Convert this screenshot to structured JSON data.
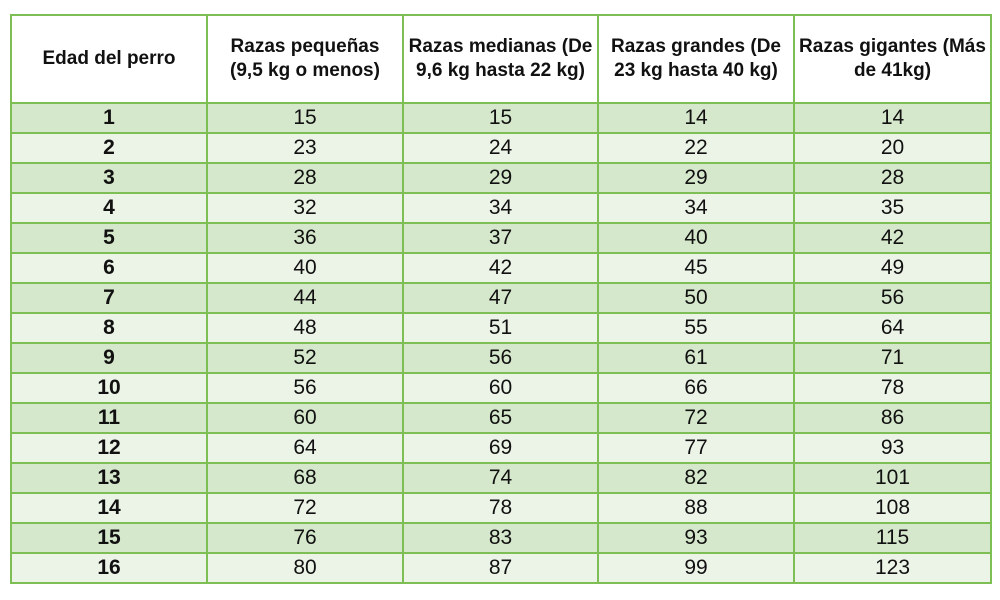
{
  "table": {
    "headers": [
      "Edad del perro",
      "Razas pequeñas (9,5 kg o menos)",
      "Razas medianas (De 9,6 kg hasta 22 kg)",
      "Razas grandes (De 23 kg hasta 40 kg)",
      "Razas gigantes (Más de 41kg)"
    ],
    "rows": [
      [
        "1",
        "15",
        "15",
        "14",
        "14"
      ],
      [
        "2",
        "23",
        "24",
        "22",
        "20"
      ],
      [
        "3",
        "28",
        "29",
        "29",
        "28"
      ],
      [
        "4",
        "32",
        "34",
        "34",
        "35"
      ],
      [
        "5",
        "36",
        "37",
        "40",
        "42"
      ],
      [
        "6",
        "40",
        "42",
        "45",
        "49"
      ],
      [
        "7",
        "44",
        "47",
        "50",
        "56"
      ],
      [
        "8",
        "48",
        "51",
        "55",
        "64"
      ],
      [
        "9",
        "52",
        "56",
        "61",
        "71"
      ],
      [
        "10",
        "56",
        "60",
        "66",
        "78"
      ],
      [
        "11",
        "60",
        "65",
        "72",
        "86"
      ],
      [
        "12",
        "64",
        "69",
        "77",
        "93"
      ],
      [
        "13",
        "68",
        "74",
        "82",
        "101"
      ],
      [
        "14",
        "72",
        "78",
        "88",
        "108"
      ],
      [
        "15",
        "76",
        "83",
        "93",
        "115"
      ],
      [
        "16",
        "80",
        "87",
        "99",
        "123"
      ]
    ]
  },
  "colors": {
    "border": "#7dbf55",
    "row_dark": "#d6e8cc",
    "row_light": "#ecf4e8"
  }
}
